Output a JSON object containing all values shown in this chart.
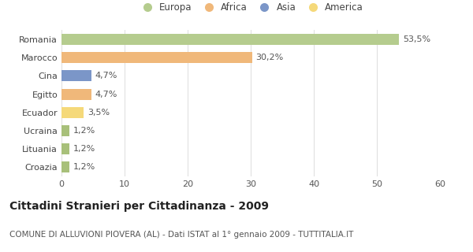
{
  "categories": [
    "Romania",
    "Marocco",
    "Cina",
    "Egitto",
    "Ecuador",
    "Ucraina",
    "Lituania",
    "Croazia"
  ],
  "values": [
    53.5,
    30.2,
    4.7,
    4.7,
    3.5,
    1.2,
    1.2,
    1.2
  ],
  "labels": [
    "53,5%",
    "30,2%",
    "4,7%",
    "4,7%",
    "3,5%",
    "1,2%",
    "1,2%",
    "1,2%"
  ],
  "colors": [
    "#b5cc8e",
    "#f0b87a",
    "#7b96c8",
    "#f0b87a",
    "#f5d97a",
    "#a8c07a",
    "#a8c07a",
    "#a8c07a"
  ],
  "legend": [
    {
      "label": "Europa",
      "color": "#b5cc8e"
    },
    {
      "label": "Africa",
      "color": "#f0b87a"
    },
    {
      "label": "Asia",
      "color": "#7b96c8"
    },
    {
      "label": "America",
      "color": "#f5d97a"
    }
  ],
  "xlim": [
    0,
    60
  ],
  "xticks": [
    0,
    10,
    20,
    30,
    40,
    50,
    60
  ],
  "title": "Cittadini Stranieri per Cittadinanza - 2009",
  "subtitle": "COMUNE DI ALLUVIONI PIOVERA (AL) - Dati ISTAT al 1° gennaio 2009 - TUTTITALIA.IT",
  "background_color": "#ffffff",
  "grid_color": "#dddddd",
  "bar_height": 0.6,
  "label_fontsize": 8,
  "title_fontsize": 10,
  "subtitle_fontsize": 7.5,
  "ytick_fontsize": 8,
  "xtick_fontsize": 8
}
